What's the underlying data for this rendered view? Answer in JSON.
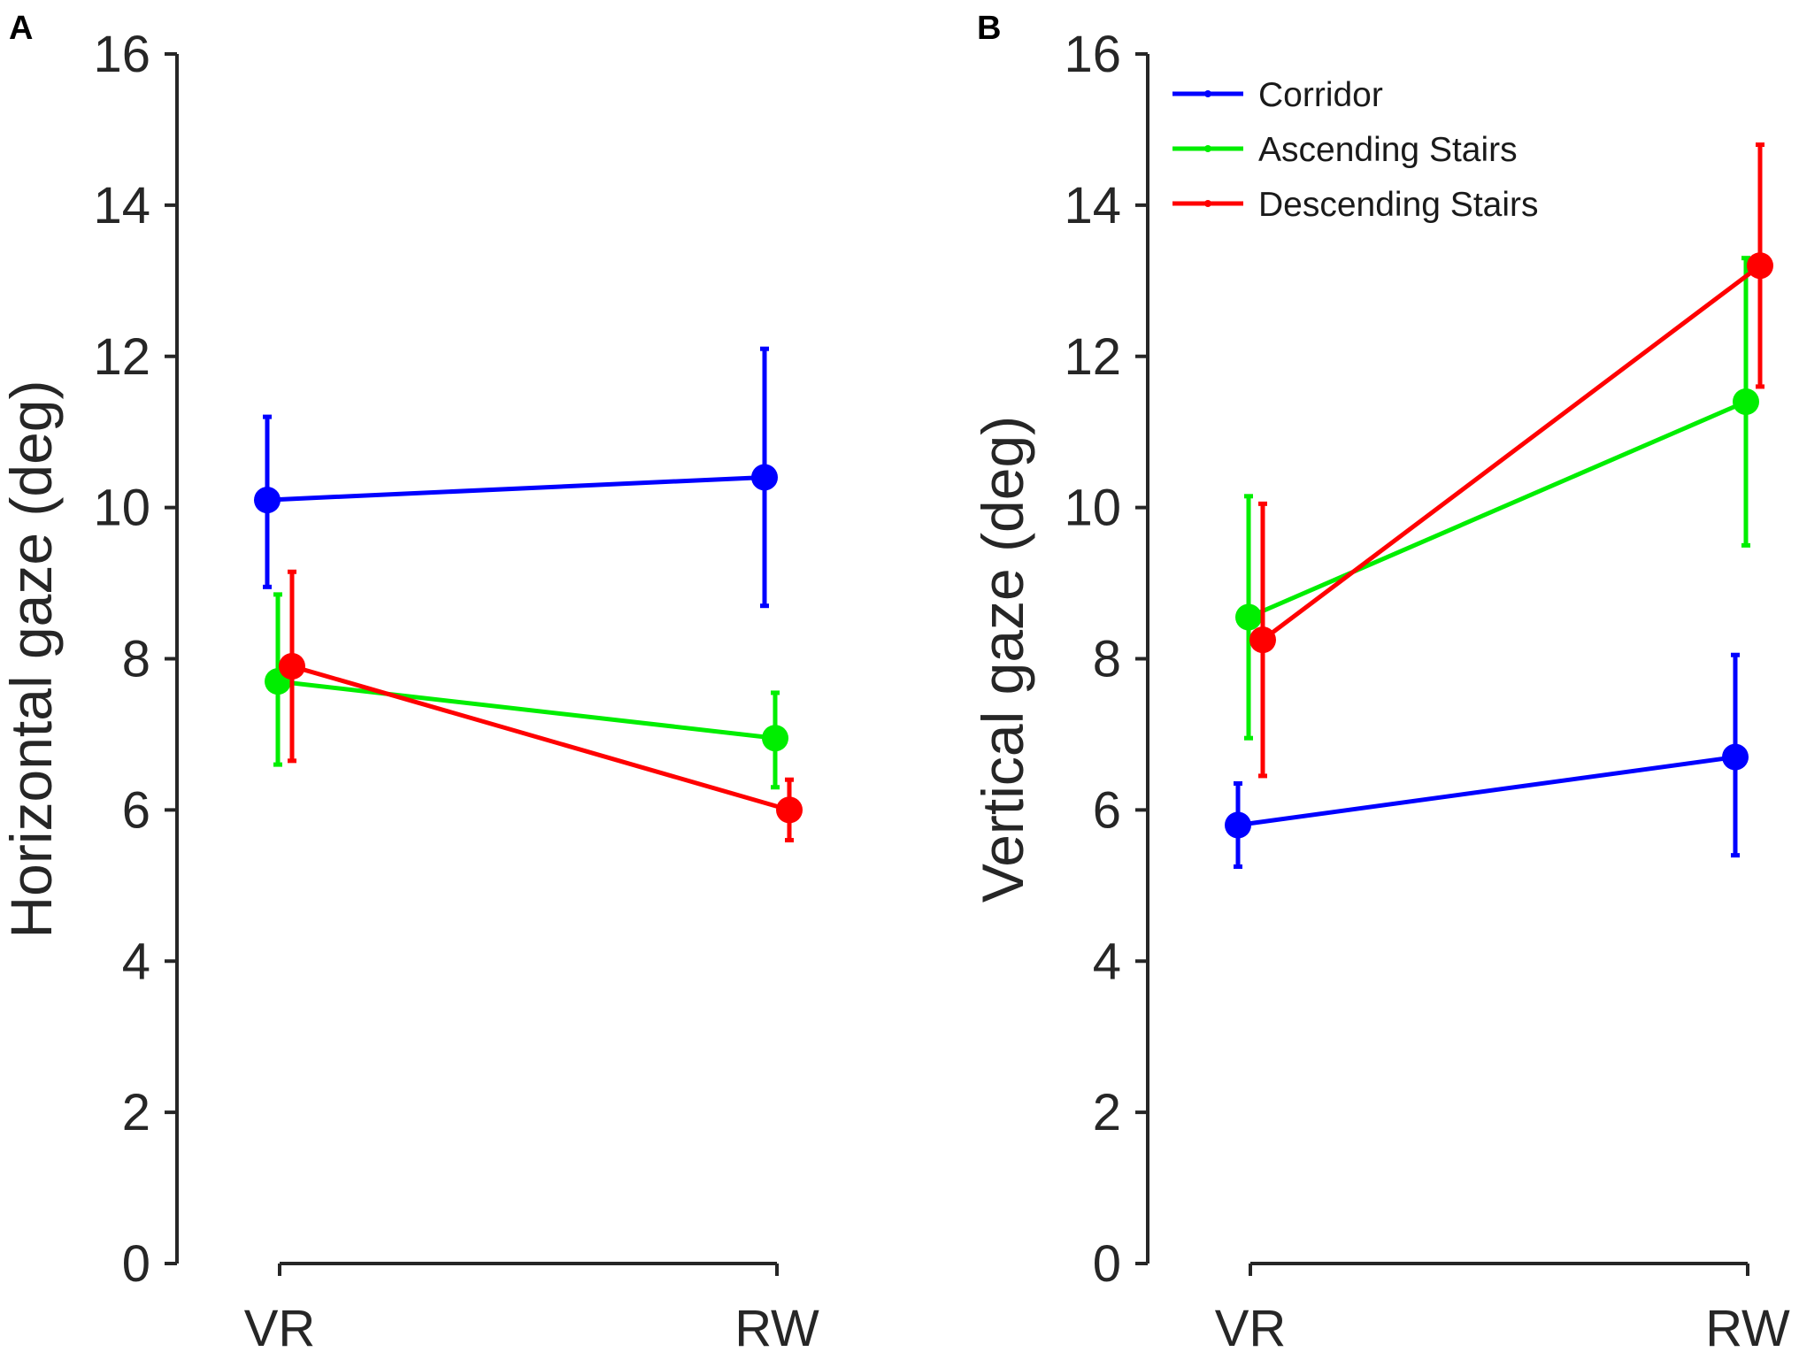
{
  "figure": {
    "panels": [
      {
        "letter": "A",
        "ylabel": "Horizontal gaze (deg)"
      },
      {
        "letter": "B",
        "ylabel": "Vertical gaze (deg)"
      }
    ],
    "colors": {
      "Corridor": "#0000ff",
      "Ascending Stairs": "#00ee00",
      "Descending Stairs": "#ff0000",
      "axis": "#262626"
    }
  },
  "chart_data": [
    {
      "type": "line",
      "panel": "A",
      "title": "",
      "xlabel": "",
      "ylabel": "Horizontal gaze (deg)",
      "categories": [
        "VR",
        "RW"
      ],
      "ylim": [
        0,
        16
      ],
      "yticks": [
        0,
        2,
        4,
        6,
        8,
        10,
        12,
        14,
        16
      ],
      "grid": false,
      "series": [
        {
          "name": "Corridor",
          "values": [
            10.1,
            10.4
          ],
          "err_low": [
            8.95,
            8.7
          ],
          "err_high": [
            11.2,
            12.1
          ]
        },
        {
          "name": "Ascending Stairs",
          "values": [
            7.7,
            6.95
          ],
          "err_low": [
            6.6,
            6.3
          ],
          "err_high": [
            8.85,
            7.55
          ]
        },
        {
          "name": "Descending Stairs",
          "values": [
            7.9,
            6.0
          ],
          "err_low": [
            6.65,
            5.6
          ],
          "err_high": [
            9.15,
            6.4
          ]
        }
      ]
    },
    {
      "type": "line",
      "panel": "B",
      "title": "",
      "xlabel": "",
      "ylabel": "Vertical gaze (deg)",
      "categories": [
        "VR",
        "RW"
      ],
      "ylim": [
        0,
        16
      ],
      "yticks": [
        0,
        2,
        4,
        6,
        8,
        10,
        12,
        14,
        16
      ],
      "grid": false,
      "legend": {
        "position": "top-left",
        "entries": [
          "Corridor",
          "Ascending Stairs",
          "Descending Stairs"
        ]
      },
      "series": [
        {
          "name": "Corridor",
          "values": [
            5.8,
            6.7
          ],
          "err_low": [
            5.25,
            5.4
          ],
          "err_high": [
            6.35,
            8.05
          ]
        },
        {
          "name": "Ascending Stairs",
          "values": [
            8.55,
            11.4
          ],
          "err_low": [
            6.95,
            9.5
          ],
          "err_high": [
            10.15,
            13.3
          ]
        },
        {
          "name": "Descending Stairs",
          "values": [
            8.25,
            13.2
          ],
          "err_low": [
            6.45,
            11.6
          ],
          "err_high": [
            10.05,
            14.8
          ]
        }
      ]
    }
  ]
}
